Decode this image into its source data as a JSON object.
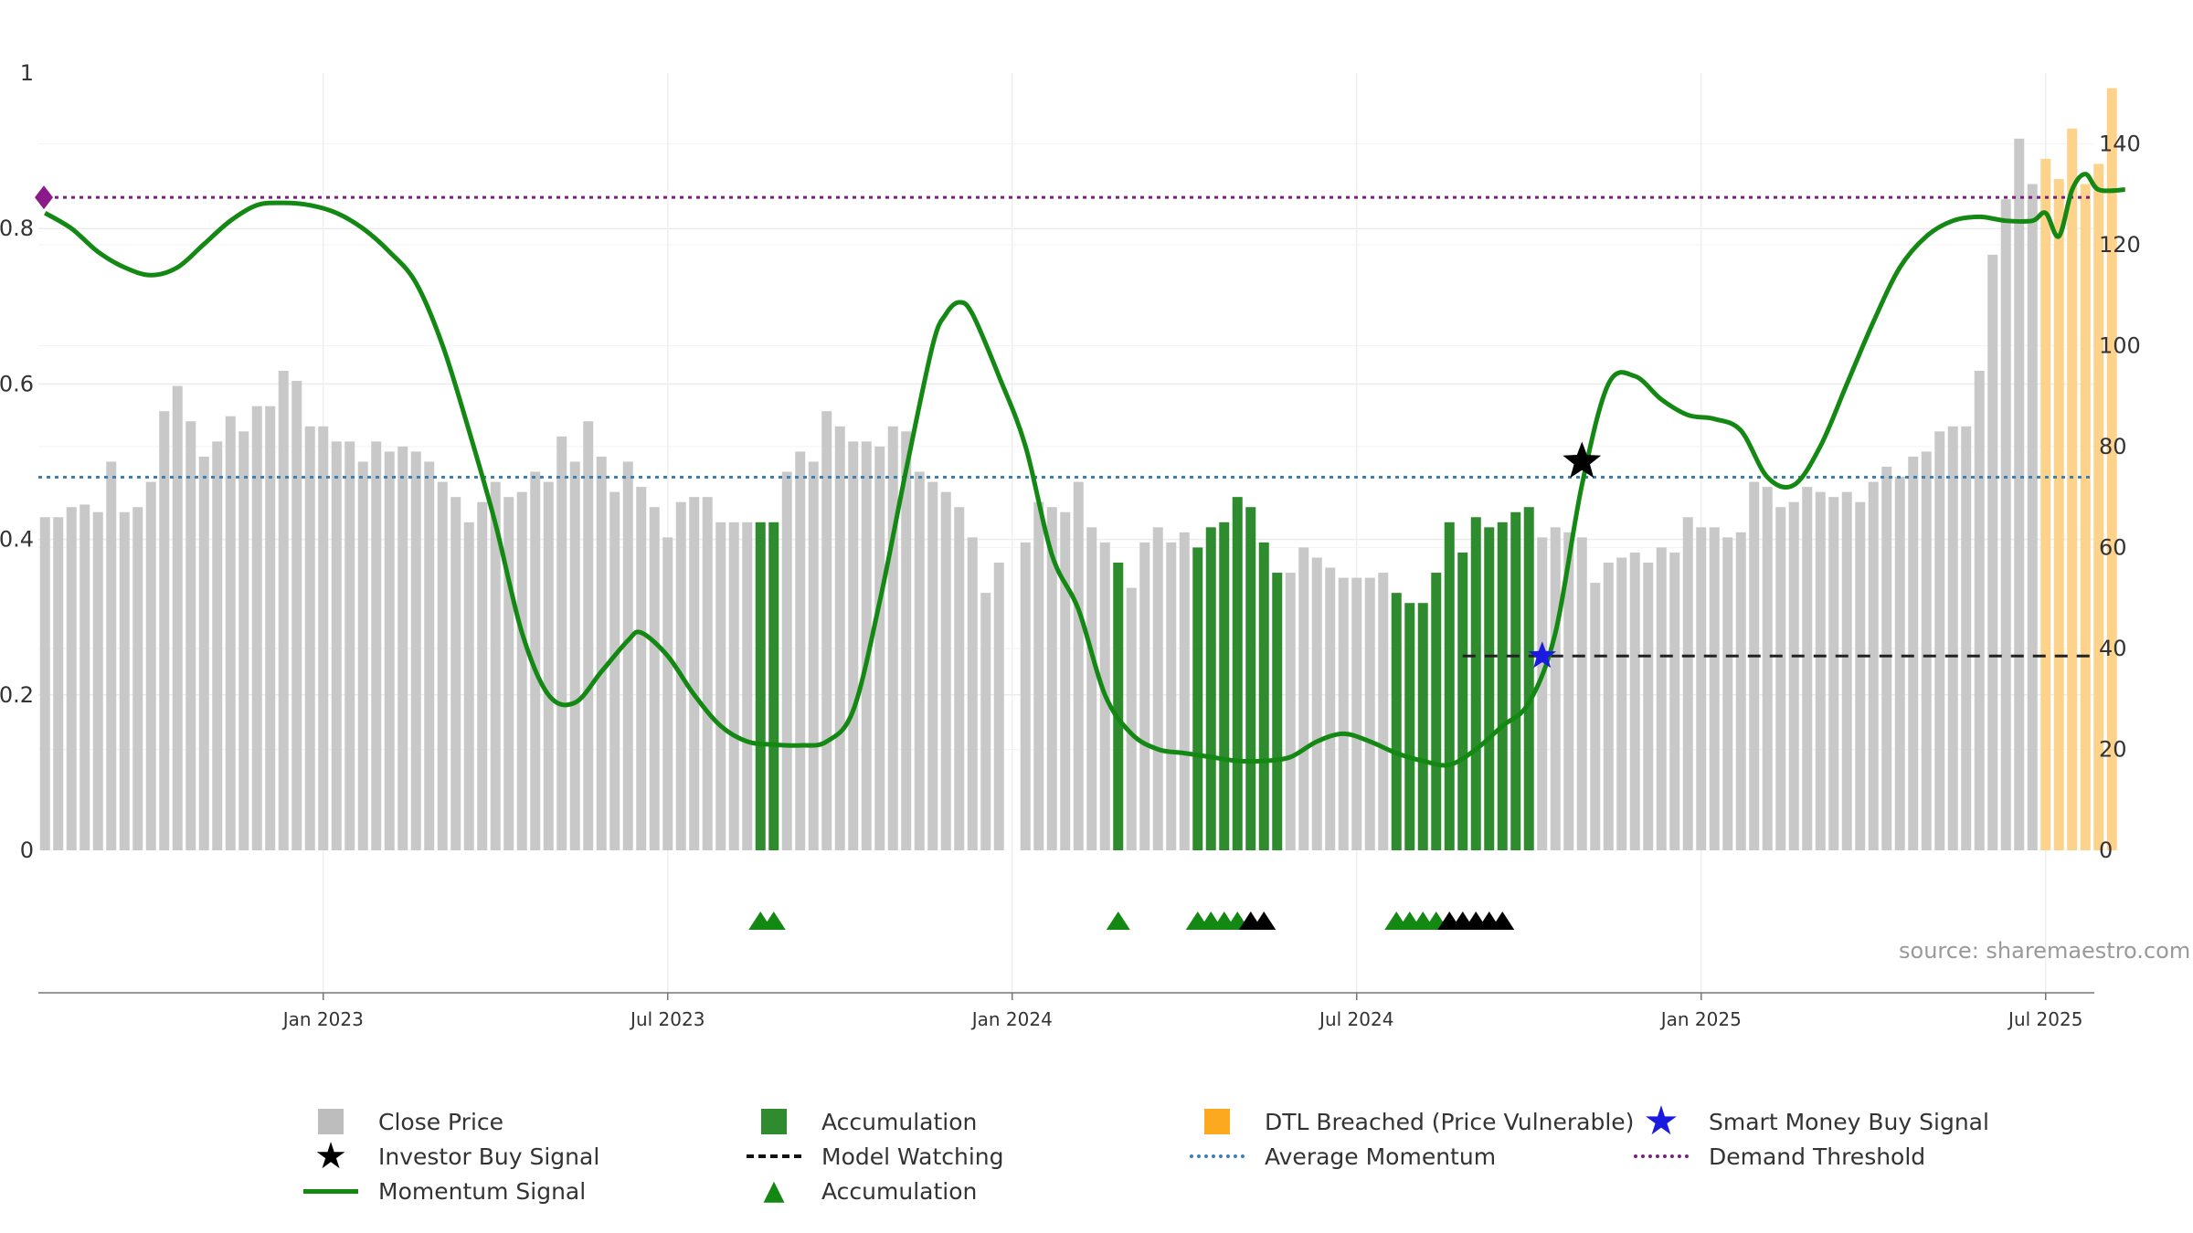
{
  "chart_data": {
    "type": "bar",
    "title": "",
    "source": "source: sharemaestro.com",
    "left_axis": {
      "ticks": [
        "0",
        "0.2",
        "0.4",
        "0.6",
        "0.8",
        "1"
      ],
      "ylim": [
        0,
        1
      ]
    },
    "right_axis": {
      "ticks": [
        "0",
        "20",
        "40",
        "60",
        "80",
        "100",
        "120",
        "140"
      ],
      "ylim": [
        0,
        152
      ]
    },
    "x_ticks": [
      "Jan 2023",
      "Jul 2023",
      "Jan 2024",
      "Jul 2024",
      "Jan 2025",
      "Jul 2025"
    ],
    "x_tick_weeks": [
      21,
      47,
      73,
      99,
      125,
      151
    ],
    "start_date": "2022-08-01",
    "week_count": 157,
    "close_price": [
      66,
      66,
      68,
      68.5,
      67,
      77,
      67,
      68,
      73,
      87,
      92,
      85,
      78,
      81,
      86,
      83,
      88,
      88,
      95,
      93,
      84,
      84,
      81,
      81,
      77,
      81,
      79,
      80,
      79,
      77,
      73,
      70,
      65,
      69,
      73,
      70,
      71,
      75,
      73,
      82,
      77,
      85,
      78,
      71,
      77,
      72,
      68,
      62,
      69,
      70,
      70,
      65,
      65,
      65,
      65,
      65,
      75,
      79,
      77,
      87,
      84,
      81,
      81,
      80,
      84,
      83,
      75,
      73,
      71,
      68,
      62,
      51,
      57,
      0,
      61,
      69,
      68,
      67,
      73,
      64,
      61,
      57,
      52,
      61,
      64,
      61,
      63,
      60,
      64,
      65,
      70,
      68,
      61,
      55,
      55,
      60,
      58,
      56,
      54,
      54,
      54,
      55,
      51,
      49,
      49,
      55,
      65,
      59,
      66,
      64,
      65,
      67,
      68,
      62,
      64,
      63,
      62,
      53,
      57,
      58,
      59,
      57,
      60,
      59,
      66,
      64,
      64,
      62,
      63,
      73,
      72,
      68,
      69,
      72,
      71,
      70,
      71,
      69,
      73,
      76,
      74,
      78,
      79,
      83,
      84,
      84,
      95,
      118,
      129,
      141,
      132,
      137,
      133,
      143,
      132,
      136,
      151
    ],
    "accumulation_weeks": [
      54,
      55,
      81,
      87,
      88,
      89,
      90,
      91,
      92,
      93,
      102,
      103,
      104,
      105,
      106,
      107,
      108,
      109,
      110,
      111,
      112
    ],
    "dtl_weeks": [
      151,
      152,
      153,
      154,
      155,
      156
    ],
    "momentum": [
      [
        0,
        0.82
      ],
      [
        2,
        0.8
      ],
      [
        4,
        0.77
      ],
      [
        6,
        0.75
      ],
      [
        8,
        0.74
      ],
      [
        10,
        0.75
      ],
      [
        12,
        0.78
      ],
      [
        14,
        0.81
      ],
      [
        16,
        0.83
      ],
      [
        18,
        0.833
      ],
      [
        20,
        0.83
      ],
      [
        22,
        0.82
      ],
      [
        24,
        0.8
      ],
      [
        26,
        0.77
      ],
      [
        28,
        0.73
      ],
      [
        30,
        0.65
      ],
      [
        32,
        0.54
      ],
      [
        34,
        0.42
      ],
      [
        36,
        0.28
      ],
      [
        38,
        0.2
      ],
      [
        40,
        0.19
      ],
      [
        42,
        0.23
      ],
      [
        44,
        0.27
      ],
      [
        45,
        0.28
      ],
      [
        47,
        0.25
      ],
      [
        49,
        0.2
      ],
      [
        51,
        0.16
      ],
      [
        53,
        0.14
      ],
      [
        55,
        0.136
      ],
      [
        57,
        0.135
      ],
      [
        59,
        0.14
      ],
      [
        61,
        0.18
      ],
      [
        63,
        0.32
      ],
      [
        65,
        0.49
      ],
      [
        67,
        0.65
      ],
      [
        68,
        0.69
      ],
      [
        69,
        0.705
      ],
      [
        70,
        0.69
      ],
      [
        72,
        0.61
      ],
      [
        74,
        0.52
      ],
      [
        76,
        0.38
      ],
      [
        78,
        0.31
      ],
      [
        80,
        0.2
      ],
      [
        82,
        0.15
      ],
      [
        84,
        0.13
      ],
      [
        86,
        0.125
      ],
      [
        88,
        0.12
      ],
      [
        90,
        0.115
      ],
      [
        92,
        0.115
      ],
      [
        94,
        0.12
      ],
      [
        96,
        0.14
      ],
      [
        98,
        0.15
      ],
      [
        100,
        0.14
      ],
      [
        102,
        0.125
      ],
      [
        104,
        0.115
      ],
      [
        106,
        0.11
      ],
      [
        108,
        0.13
      ],
      [
        110,
        0.16
      ],
      [
        112,
        0.19
      ],
      [
        114,
        0.28
      ],
      [
        116,
        0.47
      ],
      [
        118,
        0.6
      ],
      [
        120,
        0.61
      ],
      [
        122,
        0.58
      ],
      [
        124,
        0.56
      ],
      [
        126,
        0.555
      ],
      [
        128,
        0.54
      ],
      [
        130,
        0.48
      ],
      [
        132,
        0.47
      ],
      [
        134,
        0.52
      ],
      [
        136,
        0.6
      ],
      [
        138,
        0.68
      ],
      [
        140,
        0.75
      ],
      [
        142,
        0.79
      ],
      [
        144,
        0.81
      ],
      [
        146,
        0.815
      ],
      [
        148,
        0.81
      ],
      [
        150,
        0.81
      ],
      [
        151,
        0.82
      ],
      [
        152,
        0.79
      ],
      [
        153,
        0.85
      ],
      [
        154,
        0.87
      ],
      [
        155,
        0.85
      ],
      [
        157,
        0.85
      ]
    ],
    "average_momentum": 0.48,
    "demand_threshold": 0.84,
    "model_watching": {
      "start_week": 107,
      "level": 0.25
    },
    "smart_money_buy": {
      "week": 113,
      "value": 0.25
    },
    "investor_buy": {
      "week": 116,
      "value": 0.5
    },
    "demand_marker": {
      "week": 0,
      "value": 0.84
    },
    "green_triangles": [
      54,
      55,
      81,
      87,
      88,
      89,
      90,
      102,
      103,
      104,
      105
    ],
    "black_triangles": [
      91,
      92,
      106,
      107,
      108,
      109,
      110
    ],
    "colors": {
      "close_price": "#c8c8c8",
      "accumulation": "#2e8b2e",
      "dtl": "#fdd28a",
      "momentum": "#138813",
      "average_momentum": "#3d7fb0",
      "demand_threshold": "#7a1f7a",
      "smart_money": "#1a1ae0"
    }
  },
  "legend": {
    "close_price": "Close Price",
    "accumulation_bar": "Accumulation",
    "dtl": "DTL Breached (Price Vulnerable)",
    "smart_money": "Smart Money Buy Signal",
    "investor_buy": "Investor Buy Signal",
    "model_watching": "Model Watching",
    "average_momentum": "Average Momentum",
    "demand_threshold": "Demand Threshold",
    "momentum": "Momentum Signal",
    "accumulation_triangle": "Accumulation"
  }
}
